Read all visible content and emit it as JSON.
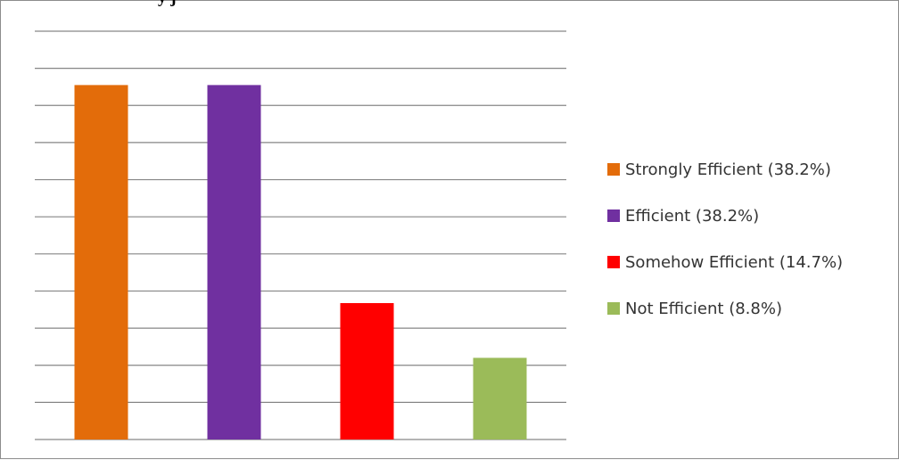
{
  "page": {
    "title_fragment": "y   j"
  },
  "chart_data": {
    "type": "bar",
    "title": "",
    "xlabel": "",
    "ylabel": "",
    "ylim": [
      0,
      44
    ],
    "grid": true,
    "legend_position": "right",
    "categories": [
      "Strongly Efficient (38.2%)",
      "Efficient (38.2%)",
      "Somehow Efficient (14.7%)",
      "Not Efficient (8.8%)"
    ],
    "values": [
      38.2,
      38.2,
      14.7,
      8.8
    ],
    "colors": [
      "#E36C0A",
      "#7030A0",
      "#FF0000",
      "#9BBB59"
    ],
    "gridline_color": "#868686",
    "axis_color": "#868686"
  }
}
